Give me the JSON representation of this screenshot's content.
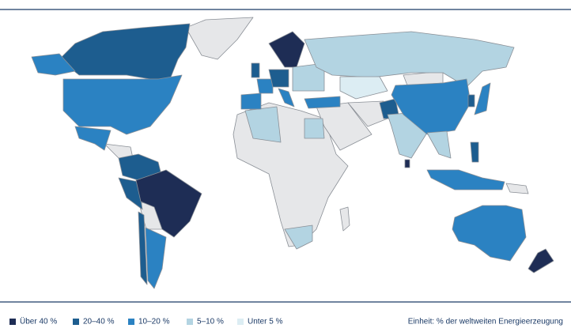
{
  "map": {
    "legend": [
      {
        "label": "Über 40 %",
        "color": "#1e2d55"
      },
      {
        "label": "20–40 %",
        "color": "#1d5d8f"
      },
      {
        "label": "10–20 %",
        "color": "#2b82c2"
      },
      {
        "label": "5–10 %",
        "color": "#b3d4e2"
      },
      {
        "label": "Unter 5 %",
        "color": "#dcedf3"
      }
    ],
    "unit_note": "Einheit: % der weltweiten Energieerzeugung"
  }
}
